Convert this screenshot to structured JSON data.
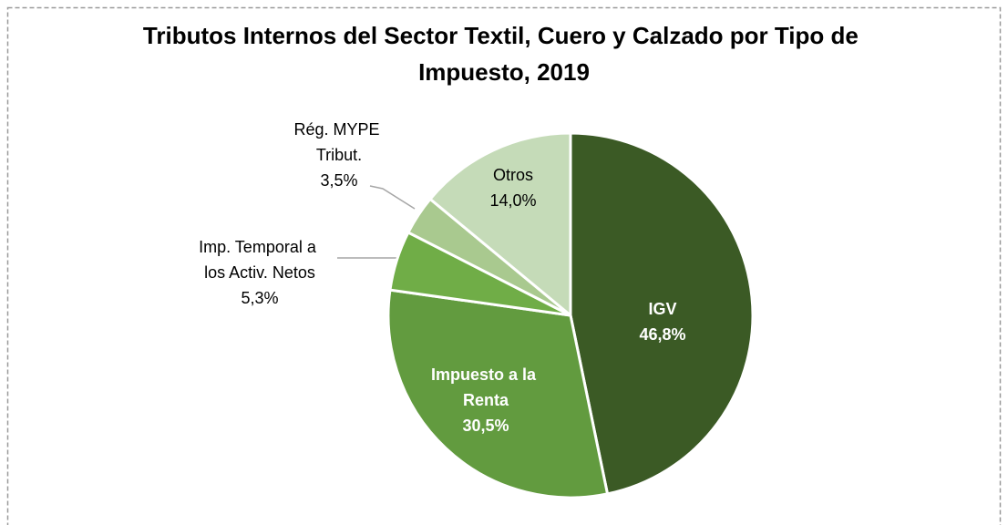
{
  "chart_data": {
    "type": "pie",
    "title": "Tributos Internos del Sector Textil, Cuero y Calzado por Tipo de Impuesto, 2019",
    "categories": [
      "IGV",
      "Impuesto a la Renta",
      "Imp. Temporal a los Activ. Netos",
      "Rég. MYPE Tribut.",
      "Otros"
    ],
    "values": [
      46.8,
      30.5,
      5.3,
      3.5,
      14.0
    ],
    "value_labels": [
      "46,8%",
      "30,5%",
      "5,3%",
      "3,5%",
      "14,0%"
    ],
    "colors": [
      "#3b5a25",
      "#629b3f",
      "#70ad47",
      "#a9c98f",
      "#c5dbb8"
    ]
  }
}
